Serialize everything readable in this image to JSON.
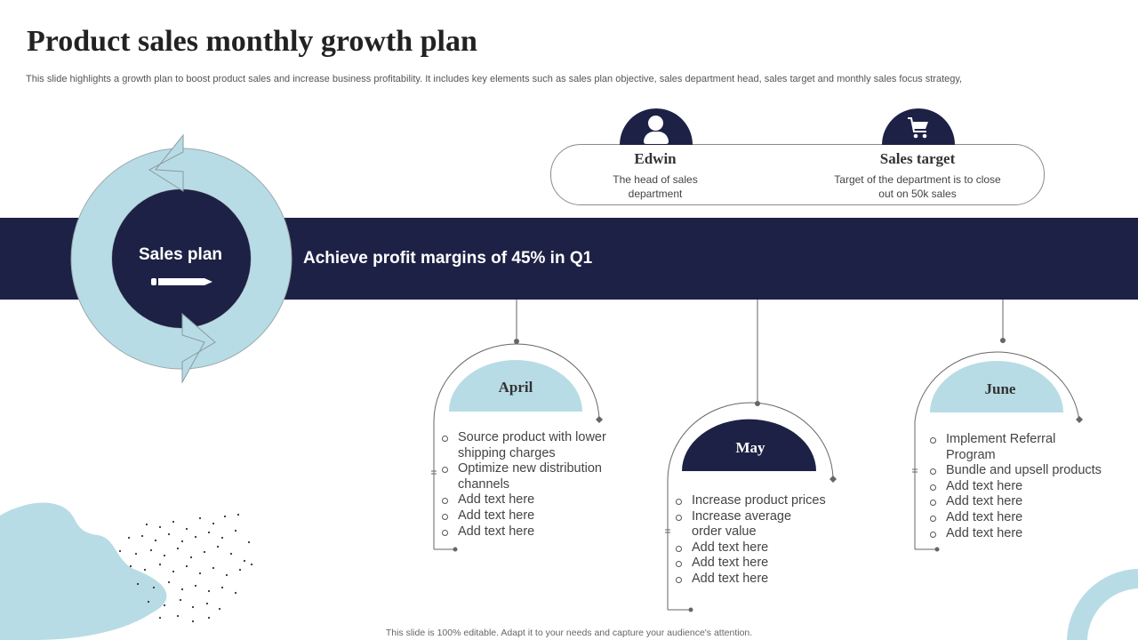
{
  "title": "Product sales monthly growth plan",
  "subtitle": "This slide highlights a growth plan to boost product sales and increase business profitability. It includes key elements such as sales plan objective, sales department head, sales target and monthly sales focus strategy,",
  "sales_plan": {
    "label": "Sales plan",
    "objective": "Achieve profit margins of 45% in Q1"
  },
  "head": {
    "icon": "person-icon",
    "name": "Edwin",
    "description": "The head of sales department"
  },
  "target": {
    "icon": "shopping-cart-icon",
    "name": "Sales target",
    "description": "Target of the department is to close out on 50k sales"
  },
  "months": [
    {
      "name": "April",
      "items": [
        "Source product with lower shipping charges",
        "Optimize new  distribution channels",
        "Add text here",
        "Add text here",
        "Add text here"
      ]
    },
    {
      "name": "May",
      "items": [
        "Increase product  prices",
        "Increase average order value",
        "Add text here",
        "Add text here",
        "Add text here"
      ]
    },
    {
      "name": "June",
      "items": [
        "Implement Referral Program",
        "Bundle and upsell products",
        "Add text here",
        "Add text here",
        "Add text here",
        "Add text here"
      ]
    }
  ],
  "footer": "This slide is 100% editable. Adapt it to your needs and capture your audience's attention.",
  "colors": {
    "navy": "#1d2145",
    "light_blue": "#b8dce5"
  }
}
